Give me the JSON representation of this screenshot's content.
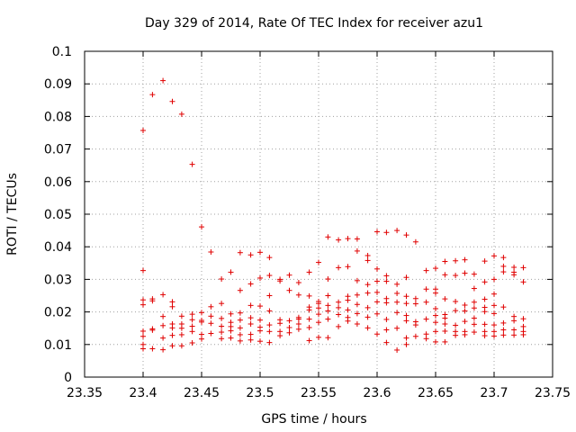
{
  "chart_data": {
    "type": "scatter",
    "title": "Day 329 of 2014, Rate Of TEC Index for receiver azu1",
    "xlabel": "GPS time / hours",
    "ylabel": "ROTI / TECUs",
    "xlim": [
      23.35,
      23.75
    ],
    "ylim": [
      0,
      0.1
    ],
    "x_ticks": [
      "23.35",
      "23.4",
      "23.45",
      "23.5",
      "23.55",
      "23.6",
      "23.65",
      "23.7",
      "23.75"
    ],
    "y_ticks": [
      "0",
      "0.01",
      "0.02",
      "0.03",
      "0.04",
      "0.05",
      "0.06",
      "0.07",
      "0.08",
      "0.09",
      "0.1"
    ],
    "grid": true,
    "marker": "+",
    "color": "#e00000",
    "series": [
      {
        "values": [
          [
            23.4,
            0.0757
          ],
          [
            23.4,
            0.0327
          ],
          [
            23.4,
            0.0237
          ],
          [
            23.4,
            0.0222
          ],
          [
            23.4,
            0.0141
          ],
          [
            23.4,
            0.0125
          ],
          [
            23.4,
            0.01
          ],
          [
            23.4,
            0.0087
          ],
          [
            23.408,
            0.0867
          ],
          [
            23.408,
            0.024
          ],
          [
            23.408,
            0.0234
          ],
          [
            23.408,
            0.0148
          ],
          [
            23.408,
            0.0144
          ],
          [
            23.408,
            0.0087
          ],
          [
            23.417,
            0.091
          ],
          [
            23.417,
            0.0253
          ],
          [
            23.417,
            0.0186
          ],
          [
            23.417,
            0.0158
          ],
          [
            23.417,
            0.012
          ],
          [
            23.417,
            0.0084
          ],
          [
            23.425,
            0.0846
          ],
          [
            23.425,
            0.0231
          ],
          [
            23.425,
            0.0216
          ],
          [
            23.425,
            0.0163
          ],
          [
            23.425,
            0.0151
          ],
          [
            23.425,
            0.0128
          ],
          [
            23.425,
            0.0096
          ],
          [
            23.433,
            0.0807
          ],
          [
            23.433,
            0.0187
          ],
          [
            23.433,
            0.0163
          ],
          [
            23.433,
            0.015
          ],
          [
            23.433,
            0.013
          ],
          [
            23.433,
            0.0096
          ],
          [
            23.442,
            0.0653
          ],
          [
            23.442,
            0.0193
          ],
          [
            23.442,
            0.0176
          ],
          [
            23.442,
            0.0156
          ],
          [
            23.442,
            0.014
          ],
          [
            23.442,
            0.0105
          ],
          [
            23.45,
            0.0461
          ],
          [
            23.45,
            0.0198
          ],
          [
            23.45,
            0.0174
          ],
          [
            23.45,
            0.0169
          ],
          [
            23.45,
            0.0131
          ],
          [
            23.45,
            0.0117
          ],
          [
            23.458,
            0.0384
          ],
          [
            23.458,
            0.0216
          ],
          [
            23.458,
            0.0187
          ],
          [
            23.458,
            0.0165
          ],
          [
            23.458,
            0.0134
          ],
          [
            23.467,
            0.0301
          ],
          [
            23.467,
            0.0226
          ],
          [
            23.467,
            0.018
          ],
          [
            23.467,
            0.0156
          ],
          [
            23.467,
            0.0138
          ],
          [
            23.467,
            0.0118
          ],
          [
            23.475,
            0.0322
          ],
          [
            23.475,
            0.0194
          ],
          [
            23.475,
            0.0168
          ],
          [
            23.475,
            0.0155
          ],
          [
            23.475,
            0.0142
          ],
          [
            23.475,
            0.012
          ],
          [
            23.483,
            0.0382
          ],
          [
            23.483,
            0.0266
          ],
          [
            23.483,
            0.0197
          ],
          [
            23.483,
            0.0175
          ],
          [
            23.483,
            0.0151
          ],
          [
            23.483,
            0.013
          ],
          [
            23.483,
            0.0111
          ],
          [
            23.492,
            0.0375
          ],
          [
            23.492,
            0.0286
          ],
          [
            23.492,
            0.022
          ],
          [
            23.492,
            0.0182
          ],
          [
            23.492,
            0.0163
          ],
          [
            23.492,
            0.0131
          ],
          [
            23.492,
            0.0114
          ],
          [
            23.5,
            0.0383
          ],
          [
            23.5,
            0.0304
          ],
          [
            23.5,
            0.0218
          ],
          [
            23.5,
            0.0175
          ],
          [
            23.5,
            0.0153
          ],
          [
            23.5,
            0.0142
          ],
          [
            23.5,
            0.011
          ],
          [
            23.508,
            0.0367
          ],
          [
            23.508,
            0.0312
          ],
          [
            23.508,
            0.025
          ],
          [
            23.508,
            0.0203
          ],
          [
            23.508,
            0.016
          ],
          [
            23.508,
            0.014
          ],
          [
            23.508,
            0.0106
          ],
          [
            23.517,
            0.03
          ],
          [
            23.517,
            0.0295
          ],
          [
            23.517,
            0.0176
          ],
          [
            23.517,
            0.0165
          ],
          [
            23.517,
            0.014
          ],
          [
            23.517,
            0.0127
          ],
          [
            23.525,
            0.0313
          ],
          [
            23.525,
            0.0266
          ],
          [
            23.525,
            0.0173
          ],
          [
            23.525,
            0.0152
          ],
          [
            23.525,
            0.0136
          ],
          [
            23.533,
            0.029
          ],
          [
            23.533,
            0.0252
          ],
          [
            23.533,
            0.0183
          ],
          [
            23.533,
            0.0178
          ],
          [
            23.533,
            0.0163
          ],
          [
            23.533,
            0.0147
          ],
          [
            23.542,
            0.0322
          ],
          [
            23.542,
            0.0249
          ],
          [
            23.542,
            0.0215
          ],
          [
            23.542,
            0.0206
          ],
          [
            23.542,
            0.0178
          ],
          [
            23.542,
            0.0152
          ],
          [
            23.542,
            0.0112
          ],
          [
            23.55,
            0.0352
          ],
          [
            23.55,
            0.0232
          ],
          [
            23.55,
            0.0226
          ],
          [
            23.55,
            0.0212
          ],
          [
            23.55,
            0.0193
          ],
          [
            23.55,
            0.0168
          ],
          [
            23.55,
            0.0122
          ],
          [
            23.558,
            0.043
          ],
          [
            23.558,
            0.0301
          ],
          [
            23.558,
            0.025
          ],
          [
            23.558,
            0.022
          ],
          [
            23.558,
            0.0203
          ],
          [
            23.558,
            0.0178
          ],
          [
            23.558,
            0.0121
          ],
          [
            23.567,
            0.0421
          ],
          [
            23.567,
            0.0336
          ],
          [
            23.567,
            0.023
          ],
          [
            23.567,
            0.0213
          ],
          [
            23.567,
            0.0192
          ],
          [
            23.567,
            0.0155
          ],
          [
            23.575,
            0.0425
          ],
          [
            23.575,
            0.0339
          ],
          [
            23.575,
            0.0248
          ],
          [
            23.575,
            0.0236
          ],
          [
            23.575,
            0.0206
          ],
          [
            23.575,
            0.0183
          ],
          [
            23.575,
            0.0172
          ],
          [
            23.583,
            0.0424
          ],
          [
            23.583,
            0.0387
          ],
          [
            23.583,
            0.0296
          ],
          [
            23.583,
            0.0252
          ],
          [
            23.583,
            0.0223
          ],
          [
            23.583,
            0.0195
          ],
          [
            23.583,
            0.0163
          ],
          [
            23.592,
            0.0373
          ],
          [
            23.592,
            0.0358
          ],
          [
            23.592,
            0.0284
          ],
          [
            23.592,
            0.0258
          ],
          [
            23.592,
            0.0213
          ],
          [
            23.592,
            0.0184
          ],
          [
            23.592,
            0.0151
          ],
          [
            23.6,
            0.0446
          ],
          [
            23.6,
            0.0332
          ],
          [
            23.6,
            0.0294
          ],
          [
            23.6,
            0.026
          ],
          [
            23.6,
            0.0231
          ],
          [
            23.6,
            0.0194
          ],
          [
            23.6,
            0.0132
          ],
          [
            23.608,
            0.0444
          ],
          [
            23.608,
            0.0311
          ],
          [
            23.608,
            0.0294
          ],
          [
            23.608,
            0.0241
          ],
          [
            23.608,
            0.0228
          ],
          [
            23.608,
            0.0177
          ],
          [
            23.608,
            0.0145
          ],
          [
            23.608,
            0.0106
          ],
          [
            23.617,
            0.045
          ],
          [
            23.617,
            0.0285
          ],
          [
            23.617,
            0.0257
          ],
          [
            23.617,
            0.023
          ],
          [
            23.617,
            0.0198
          ],
          [
            23.617,
            0.015
          ],
          [
            23.617,
            0.0083
          ],
          [
            23.625,
            0.0436
          ],
          [
            23.625,
            0.0306
          ],
          [
            23.625,
            0.0248
          ],
          [
            23.625,
            0.0226
          ],
          [
            23.625,
            0.0189
          ],
          [
            23.625,
            0.0173
          ],
          [
            23.625,
            0.012
          ],
          [
            23.625,
            0.01
          ],
          [
            23.633,
            0.0415
          ],
          [
            23.633,
            0.0241
          ],
          [
            23.633,
            0.0225
          ],
          [
            23.633,
            0.017
          ],
          [
            23.633,
            0.016
          ],
          [
            23.633,
            0.0125
          ],
          [
            23.642,
            0.0327
          ],
          [
            23.642,
            0.027
          ],
          [
            23.642,
            0.023
          ],
          [
            23.642,
            0.0178
          ],
          [
            23.642,
            0.0132
          ],
          [
            23.642,
            0.0118
          ],
          [
            23.65,
            0.0334
          ],
          [
            23.65,
            0.027
          ],
          [
            23.65,
            0.0258
          ],
          [
            23.65,
            0.021
          ],
          [
            23.65,
            0.0189
          ],
          [
            23.65,
            0.0168
          ],
          [
            23.65,
            0.014
          ],
          [
            23.65,
            0.0108
          ],
          [
            23.658,
            0.0355
          ],
          [
            23.658,
            0.0314
          ],
          [
            23.658,
            0.024
          ],
          [
            23.658,
            0.0192
          ],
          [
            23.658,
            0.0181
          ],
          [
            23.658,
            0.0163
          ],
          [
            23.658,
            0.0141
          ],
          [
            23.658,
            0.0108
          ],
          [
            23.667,
            0.0357
          ],
          [
            23.667,
            0.0312
          ],
          [
            23.667,
            0.0232
          ],
          [
            23.667,
            0.0204
          ],
          [
            23.667,
            0.0159
          ],
          [
            23.667,
            0.014
          ],
          [
            23.667,
            0.0128
          ],
          [
            23.675,
            0.036
          ],
          [
            23.675,
            0.0319
          ],
          [
            23.675,
            0.0221
          ],
          [
            23.675,
            0.0203
          ],
          [
            23.675,
            0.0171
          ],
          [
            23.675,
            0.014
          ],
          [
            23.675,
            0.013
          ],
          [
            23.683,
            0.0316
          ],
          [
            23.683,
            0.0272
          ],
          [
            23.683,
            0.023
          ],
          [
            23.683,
            0.0212
          ],
          [
            23.683,
            0.0181
          ],
          [
            23.683,
            0.0162
          ],
          [
            23.683,
            0.0138
          ],
          [
            23.692,
            0.0356
          ],
          [
            23.692,
            0.0292
          ],
          [
            23.692,
            0.0239
          ],
          [
            23.692,
            0.0214
          ],
          [
            23.692,
            0.0201
          ],
          [
            23.692,
            0.0162
          ],
          [
            23.692,
            0.014
          ],
          [
            23.692,
            0.0127
          ],
          [
            23.7,
            0.0372
          ],
          [
            23.7,
            0.03
          ],
          [
            23.7,
            0.0255
          ],
          [
            23.7,
            0.022
          ],
          [
            23.7,
            0.0195
          ],
          [
            23.7,
            0.016
          ],
          [
            23.7,
            0.014
          ],
          [
            23.7,
            0.0126
          ],
          [
            23.708,
            0.0367
          ],
          [
            23.708,
            0.034
          ],
          [
            23.708,
            0.0323
          ],
          [
            23.708,
            0.0215
          ],
          [
            23.708,
            0.0166
          ],
          [
            23.708,
            0.0145
          ],
          [
            23.708,
            0.0129
          ],
          [
            23.717,
            0.0337
          ],
          [
            23.717,
            0.0322
          ],
          [
            23.717,
            0.0314
          ],
          [
            23.717,
            0.0186
          ],
          [
            23.717,
            0.0173
          ],
          [
            23.717,
            0.0145
          ],
          [
            23.717,
            0.0129
          ],
          [
            23.725,
            0.0336
          ],
          [
            23.725,
            0.0292
          ],
          [
            23.725,
            0.0179
          ],
          [
            23.725,
            0.0155
          ],
          [
            23.725,
            0.014
          ],
          [
            23.725,
            0.013
          ]
        ]
      }
    ]
  }
}
